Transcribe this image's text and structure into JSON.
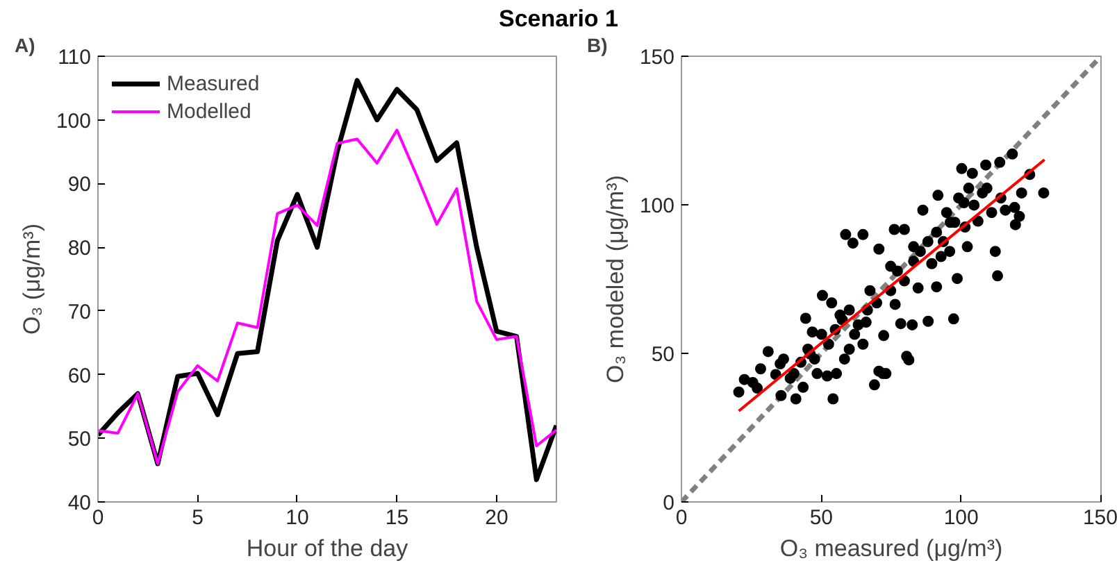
{
  "chart_data": [
    {
      "type": "line",
      "title": "Scenario 1",
      "annotations": [
        "A)"
      ],
      "xlabel": "Hour of the day",
      "ylabel": "O₃ (μg/m³)",
      "x": [
        0,
        1,
        2,
        3,
        4,
        5,
        6,
        7,
        8,
        9,
        10,
        11,
        12,
        13,
        14,
        15,
        16,
        17,
        18,
        19,
        20,
        21,
        22,
        23
      ],
      "xlim": [
        0,
        23
      ],
      "xticks": [
        0,
        5,
        10,
        15,
        20
      ],
      "ylim": [
        40,
        110
      ],
      "yticks": [
        40,
        50,
        60,
        70,
        80,
        90,
        100,
        110
      ],
      "legend": "top left",
      "series": [
        {
          "name": "Measured",
          "color": "#000000",
          "values": [
            50.5,
            54,
            57,
            46,
            59.7,
            60.2,
            53.7,
            63.3,
            63.6,
            81,
            88.3,
            80,
            95,
            106.2,
            100,
            104.8,
            101.6,
            93.6,
            96.4,
            80,
            66.8,
            66,
            43.5,
            52
          ]
        },
        {
          "name": "Modelled",
          "color": "#ff00ff",
          "values": [
            51.2,
            50.8,
            57,
            46,
            57.3,
            61.4,
            59,
            68.1,
            67.4,
            85.3,
            86.6,
            83.4,
            96.3,
            97,
            93.2,
            98.4,
            91.2,
            83.6,
            89.2,
            71.5,
            65.5,
            66,
            48.8,
            51.3
          ]
        }
      ]
    },
    {
      "type": "scatter",
      "annotations": [
        "B)"
      ],
      "xlabel": "O₃ measured (μg/m³)",
      "ylabel": "O₃ modeled (μg/m³)",
      "xlim": [
        0,
        150
      ],
      "xticks": [
        0,
        50,
        100,
        150
      ],
      "ylim": [
        0,
        150
      ],
      "yticks": [
        0,
        50,
        100,
        150
      ],
      "series": [
        {
          "type": "line",
          "color": "#808080",
          "line_style": "dashed",
          "x": [
            0,
            150
          ],
          "values": [
            0,
            150
          ]
        },
        {
          "type": "scatter",
          "color": "#000000",
          "marker": "circle",
          "x": [
            20.5,
            22.5,
            25.5,
            28.3,
            31,
            27.1,
            33.7,
            35.6,
            36.5,
            38.9,
            40.9,
            42.7,
            43.5,
            44.4,
            45.2,
            46.8,
            48.5,
            50.1,
            50.4,
            52.1,
            53.7,
            54.2,
            55.4,
            56.7,
            58.3,
            58.7,
            60,
            61.3,
            61.9,
            64.9,
            64.9,
            66,
            67.4,
            69,
            70.6,
            70.6,
            72,
            73.1,
            72.3,
            74.8,
            76.1,
            76.4,
            78.4,
            79.7,
            80.5,
            81.3,
            82.5,
            83,
            84.6,
            86.3,
            88.2,
            89.5,
            91.2,
            91.7,
            93.6,
            94.8,
            97.3,
            98.6,
            99.1,
            100.2,
            101.4,
            102.2,
            104,
            104.6,
            106,
            108.8,
            109.2,
            110.9,
            112.2,
            113,
            113.8,
            114.2,
            115.8,
            118.3,
            119.1,
            119.4,
            120.8,
            121.6,
            124.5,
            129.5,
            35.3,
            40.2,
            46,
            47.6,
            52.6,
            55,
            57.5,
            60,
            63.2,
            66.5,
            69.8,
            74.8,
            77.2,
            79.7,
            83,
            85.4,
            88.1,
            91.2,
            92.8,
            95.9,
            97.7,
            101,
            102.7,
            107.6,
            96.1
          ],
          "values": [
            37,
            41.2,
            40.2,
            44.8,
            50.6,
            38.3,
            42.9,
            35.8,
            48.1,
            41.6,
            34.7,
            47,
            38.6,
            61.8,
            51.4,
            57.2,
            43.2,
            56.4,
            69.5,
            42.4,
            67,
            34.7,
            43.2,
            62.9,
            48.1,
            90,
            64.6,
            87.1,
            56.4,
            90,
            53.1,
            60.5,
            71.1,
            39.4,
            44,
            85.1,
            43.2,
            43.2,
            56,
            79.3,
            91.7,
            66.5,
            60,
            91.7,
            49,
            47.8,
            59.6,
            85.9,
            72,
            98.2,
            60.8,
            80.2,
            72.4,
            103.2,
            87.6,
            97.4,
            61.6,
            75.2,
            102.3,
            112.2,
            92.5,
            85.9,
            110.6,
            99.9,
            94.5,
            113.4,
            105.6,
            97.4,
            84.3,
            76.1,
            114.3,
            102.3,
            98.2,
            117.1,
            99.1,
            93.3,
            96.1,
            104,
            110.2,
            104,
            46.5,
            43.2,
            49.8,
            48.1,
            53.1,
            58,
            61.3,
            51.4,
            59.6,
            64.6,
            67,
            71.1,
            77.7,
            74.4,
            81,
            84.3,
            87.6,
            90.8,
            82.6,
            84.3,
            94.1,
            100.7,
            105.6,
            104,
            94.1
          ]
        },
        {
          "type": "line",
          "color": "#ff0000",
          "x": [
            20.5,
            129.8
          ],
          "values": [
            30.6,
            115.2
          ]
        }
      ]
    }
  ]
}
